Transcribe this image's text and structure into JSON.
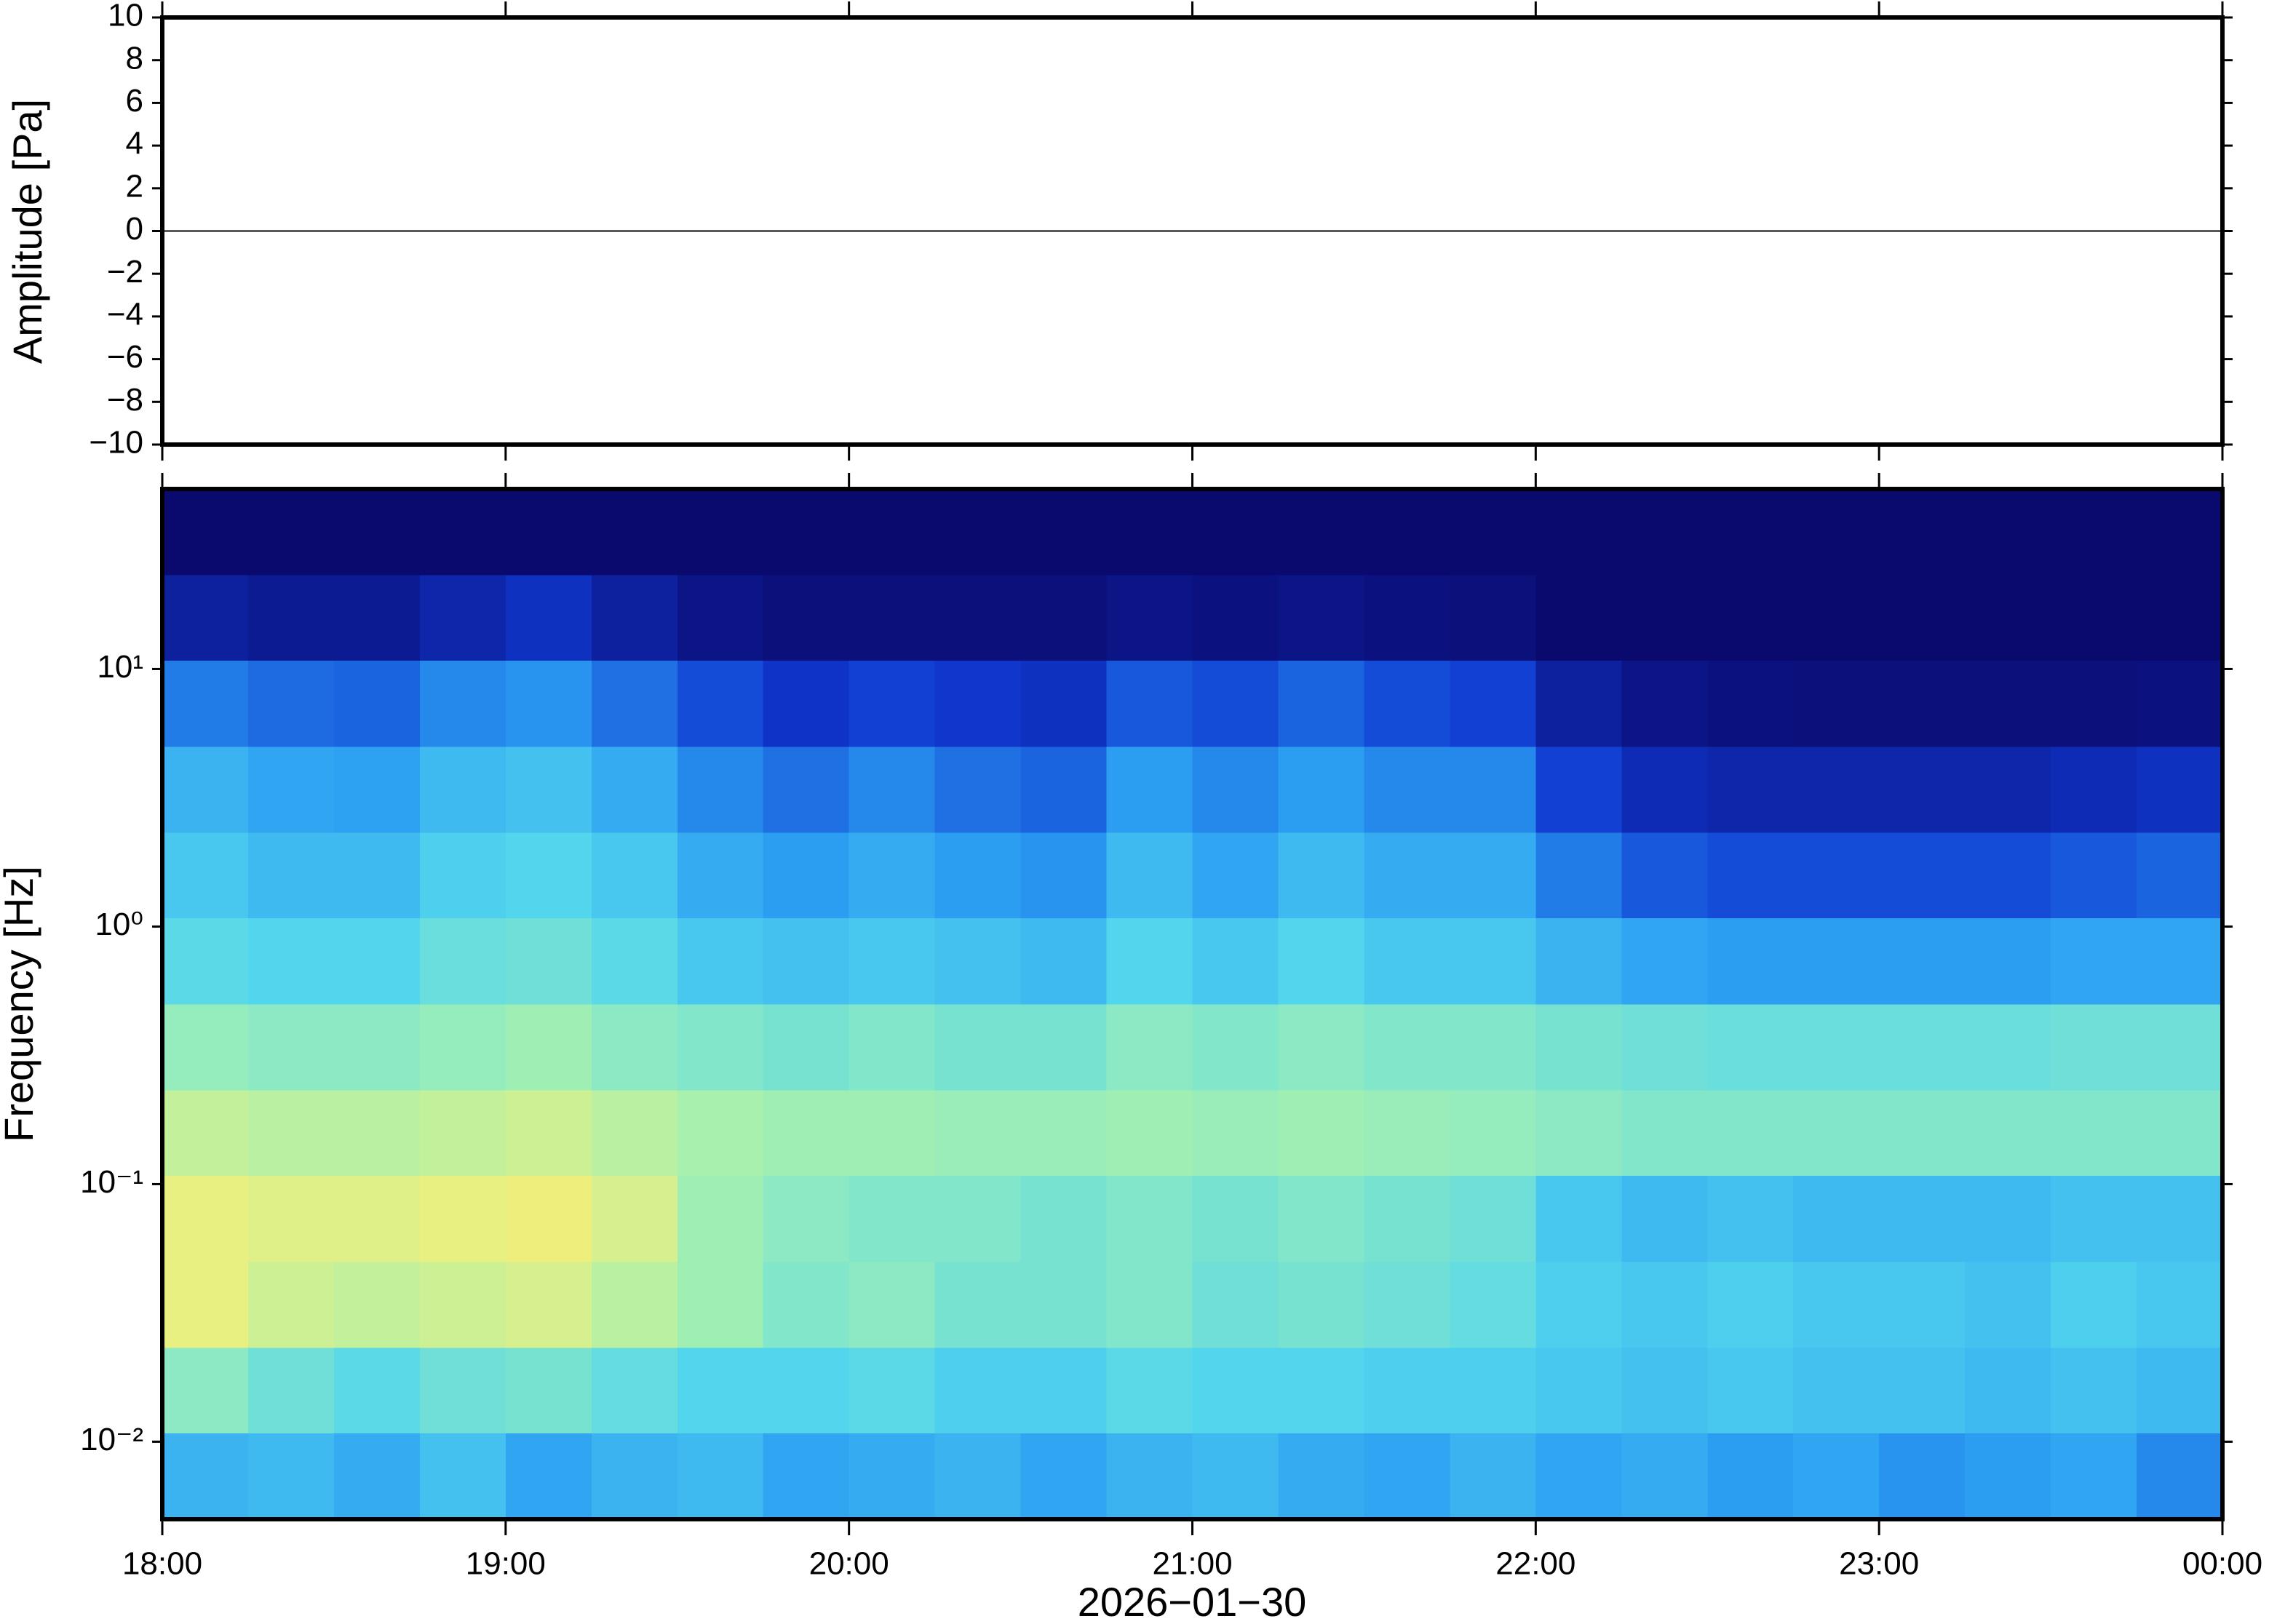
{
  "chart_data": [
    {
      "type": "line",
      "y_label": "Amplitude [Pa]",
      "x": [
        18,
        18.5,
        19,
        19.5,
        20,
        20.5,
        21,
        21.5,
        22,
        22.5,
        23,
        23.5,
        24
      ],
      "values": [
        0,
        0,
        0,
        0,
        0,
        0,
        0,
        0,
        0,
        0,
        0,
        0,
        0
      ],
      "color": "#000000",
      "xlim": [
        18,
        24
      ],
      "xticks": [
        18,
        19,
        20,
        21,
        22,
        23,
        24
      ],
      "ylim": [
        -10,
        10
      ],
      "yticks": [
        {
          "value": -10,
          "label": "−10"
        },
        {
          "value": -8,
          "label": "−8"
        },
        {
          "value": -6,
          "label": "−6"
        },
        {
          "value": -4,
          "label": "−4"
        },
        {
          "value": -2,
          "label": "−2"
        },
        0,
        2,
        4,
        6,
        8,
        10
      ]
    },
    {
      "type": "heatmap",
      "y_label": "Frequency [Hz]",
      "x_label": "2026−01−30",
      "xlim": [
        18,
        24
      ],
      "xticks": [
        {
          "value": 18,
          "label": "18:00"
        },
        {
          "value": 19,
          "label": "19:00"
        },
        {
          "value": 20,
          "label": "20:00"
        },
        {
          "value": 21,
          "label": "21:00"
        },
        {
          "value": 22,
          "label": "22:00"
        },
        {
          "value": 23,
          "label": "23:00"
        },
        {
          "value": 24,
          "label": "00:00"
        }
      ],
      "ylim": [
        0.005,
        50
      ],
      "y_log": true,
      "yticks": [
        {
          "value": 0.01,
          "label": "10⁻²"
        },
        {
          "value": 0.1,
          "label": "10⁻¹"
        },
        {
          "value": 1,
          "label": "10⁰"
        },
        {
          "value": 10,
          "label": "10¹"
        }
      ],
      "xbins": [
        18,
        18.25,
        18.5,
        18.75,
        19,
        19.25,
        19.5,
        19.75,
        20,
        20.25,
        20.5,
        20.75,
        21,
        21.25,
        21.5,
        21.75,
        22,
        22.25,
        22.5,
        22.75,
        23,
        23.25,
        23.5,
        23.75,
        24
      ],
      "ybins": [
        0.005,
        0.0108,
        0.0232,
        0.05,
        0.108,
        0.232,
        0.5,
        1.08,
        2.32,
        5,
        10.8,
        23.2,
        50
      ],
      "zlim": [
        0,
        1
      ],
      "colormap": [
        "#0a0a6e",
        "#1038d0",
        "#2a9cf2",
        "#52d6ee",
        "#a2f0b2",
        "#eef07e",
        "#f2b464"
      ],
      "values": [
        [
          0.4,
          0.42,
          0.38,
          0.44,
          0.36,
          0.4,
          0.42,
          0.36,
          0.38,
          0.4,
          0.36,
          0.4,
          0.42,
          0.38,
          0.36,
          0.4,
          0.36,
          0.38,
          0.34,
          0.36,
          0.32,
          0.34,
          0.36,
          0.3
        ],
        [
          0.62,
          0.56,
          0.52,
          0.56,
          0.58,
          0.54,
          0.5,
          0.5,
          0.52,
          0.48,
          0.48,
          0.52,
          0.5,
          0.5,
          0.48,
          0.48,
          0.46,
          0.44,
          0.46,
          0.44,
          0.44,
          0.42,
          0.44,
          0.42
        ],
        [
          0.82,
          0.76,
          0.74,
          0.76,
          0.78,
          0.72,
          0.66,
          0.6,
          0.62,
          0.58,
          0.58,
          0.6,
          0.56,
          0.58,
          0.56,
          0.54,
          0.48,
          0.46,
          0.48,
          0.46,
          0.46,
          0.44,
          0.48,
          0.46
        ],
        [
          0.82,
          0.8,
          0.8,
          0.82,
          0.84,
          0.78,
          0.66,
          0.62,
          0.6,
          0.6,
          0.58,
          0.6,
          0.58,
          0.6,
          0.58,
          0.56,
          0.46,
          0.42,
          0.44,
          0.42,
          0.42,
          0.42,
          0.44,
          0.44
        ],
        [
          0.74,
          0.72,
          0.72,
          0.74,
          0.76,
          0.72,
          0.68,
          0.66,
          0.66,
          0.65,
          0.65,
          0.66,
          0.65,
          0.66,
          0.65,
          0.64,
          0.62,
          0.6,
          0.6,
          0.6,
          0.6,
          0.6,
          0.6,
          0.6
        ],
        [
          0.64,
          0.62,
          0.62,
          0.64,
          0.66,
          0.62,
          0.6,
          0.58,
          0.6,
          0.58,
          0.58,
          0.62,
          0.6,
          0.62,
          0.6,
          0.6,
          0.58,
          0.56,
          0.55,
          0.55,
          0.55,
          0.55,
          0.56,
          0.56
        ],
        [
          0.52,
          0.5,
          0.5,
          0.55,
          0.56,
          0.52,
          0.46,
          0.44,
          0.46,
          0.44,
          0.42,
          0.5,
          0.46,
          0.5,
          0.46,
          0.46,
          0.4,
          0.36,
          0.34,
          0.34,
          0.34,
          0.34,
          0.36,
          0.36
        ],
        [
          0.46,
          0.42,
          0.42,
          0.48,
          0.5,
          0.46,
          0.38,
          0.34,
          0.38,
          0.34,
          0.32,
          0.42,
          0.36,
          0.42,
          0.38,
          0.38,
          0.28,
          0.22,
          0.2,
          0.2,
          0.2,
          0.2,
          0.22,
          0.24
        ],
        [
          0.4,
          0.36,
          0.35,
          0.42,
          0.44,
          0.38,
          0.3,
          0.26,
          0.3,
          0.26,
          0.24,
          0.34,
          0.3,
          0.34,
          0.3,
          0.3,
          0.18,
          0.12,
          0.1,
          0.1,
          0.1,
          0.1,
          0.12,
          0.14
        ],
        [
          0.28,
          0.25,
          0.24,
          0.3,
          0.32,
          0.26,
          0.2,
          0.15,
          0.18,
          0.16,
          0.14,
          0.22,
          0.2,
          0.24,
          0.2,
          0.18,
          0.08,
          0.04,
          0.03,
          0.02,
          0.02,
          0.02,
          0.02,
          0.03
        ],
        [
          0.08,
          0.06,
          0.06,
          0.1,
          0.14,
          0.08,
          0.04,
          0.02,
          0.02,
          0.02,
          0.02,
          0.04,
          0.03,
          0.04,
          0.03,
          0.02,
          0,
          0,
          0,
          0,
          0,
          0,
          0,
          0
        ],
        [
          0,
          0,
          0,
          0,
          0,
          0,
          0,
          0,
          0,
          0,
          0,
          0,
          0,
          0,
          0,
          0,
          0,
          0,
          0,
          0,
          0,
          0,
          0,
          0
        ]
      ]
    }
  ]
}
